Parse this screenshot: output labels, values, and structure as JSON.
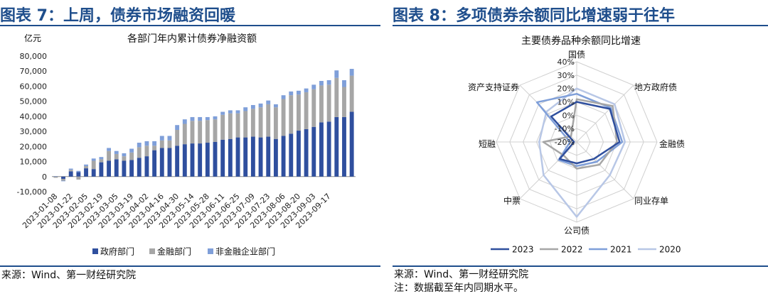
{
  "panels": {
    "left": {
      "figure_title": "图表 7：上周，债券市场融资回暖",
      "source": "来源：Wind、第一财经研究院"
    },
    "right": {
      "figure_title": "图表 8：多项债券余额同比增速弱于往年",
      "source": "来源：Wind、第一财经研究院",
      "note": "注：数据截至年内同期水平。"
    }
  },
  "colors": {
    "brand": "#1f4e8c",
    "gov": "#2f4f9e",
    "fin": "#a6a6a6",
    "nonfin": "#7f9fd9",
    "r2023": "#2f4f9e",
    "r2022": "#a6a6a6",
    "r2021": "#7f9fd9",
    "r2020": "#b8c7e6"
  },
  "chart_data": [
    {
      "type": "bar",
      "stacked": true,
      "title": "各部门年内累计债券净融资额",
      "unit_label": "亿元",
      "ylim": [
        -10000,
        80000
      ],
      "yticks": [
        -10000,
        0,
        10000,
        20000,
        30000,
        40000,
        50000,
        60000,
        70000,
        80000
      ],
      "ytick_labels": [
        "-10,000",
        "0",
        "10,000",
        "20,000",
        "30,000",
        "40,000",
        "50,000",
        "60,000",
        "70,000",
        "80,000"
      ],
      "xtick_labels": [
        "2023-01-08",
        "2023-01-22",
        "2023-02-05",
        "2023-02-19",
        "2023-03-05",
        "2023-03-19",
        "2023-04-02",
        "2023-04-16",
        "2023-04-30",
        "2023-05-14",
        "2023-05-28",
        "2023-06-11",
        "2023-06-25",
        "2023-07-09",
        "2023-07-23",
        "2023-08-06",
        "2023-08-20",
        "2023-09-03",
        "2023-09-17"
      ],
      "legend_position": "bottom",
      "series": [
        {
          "name": "政府部门",
          "values": [
            200,
            -1500,
            3500,
            3000,
            5500,
            5000,
            9500,
            10500,
            11500,
            10500,
            11000,
            12500,
            13500,
            17500,
            19000,
            19000,
            20500,
            21500,
            22000,
            22000,
            22500,
            23000,
            24500,
            25000,
            26000,
            26000,
            26500,
            26000,
            26500,
            25000,
            27000,
            28500,
            30500,
            31500,
            33000,
            36000,
            36500,
            39500,
            39500,
            43000
          ]
        },
        {
          "name": "金融部门",
          "values": [
            -800,
            -1200,
            1000,
            -2000,
            1500,
            5500,
            2000,
            6500,
            3500,
            3000,
            5000,
            7000,
            7000,
            3000,
            5000,
            5000,
            10500,
            13500,
            15000,
            15000,
            15000,
            15000,
            16500,
            17000,
            16000,
            17500,
            18500,
            20000,
            21500,
            21000,
            24500,
            25500,
            24000,
            24500,
            25000,
            24500,
            24500,
            26000,
            20000,
            24000
          ]
        },
        {
          "name": "非金融企业部门",
          "values": [
            0,
            -400,
            800,
            800,
            1000,
            1500,
            1500,
            2000,
            2000,
            2000,
            2500,
            3000,
            3000,
            3000,
            3000,
            3000,
            3200,
            3000,
            2500,
            2500,
            2000,
            2000,
            2000,
            2000,
            2000,
            2500,
            2500,
            2500,
            2500,
            2000,
            2500,
            2500,
            2500,
            2500,
            3000,
            3000,
            3000,
            5000,
            4500,
            4500
          ]
        }
      ]
    },
    {
      "type": "radar",
      "title": "主要债券品种余额同比增速",
      "categories": [
        "国债",
        "地方政府债",
        "金融债",
        "同业存单",
        "公司债",
        "中票",
        "短融",
        "资产支持证券"
      ],
      "r_ticks": [
        "-20%",
        "-10%",
        "0%",
        "10%",
        "20%",
        "30%",
        "40%"
      ],
      "r_tick_values": [
        -20,
        -10,
        0,
        10,
        20,
        30,
        40
      ],
      "rlim": [
        -20,
        40
      ],
      "legend_position": "bottom",
      "series": [
        {
          "name": "2023",
          "values": [
            10,
            15,
            12,
            -2,
            -4,
            -2,
            -18,
            7
          ]
        },
        {
          "name": "2022",
          "values": [
            12,
            18,
            10,
            4,
            0,
            -6,
            5,
            -14
          ]
        },
        {
          "name": "2021",
          "values": [
            16,
            16,
            14,
            1,
            -2,
            -1,
            -15,
            22
          ]
        },
        {
          "name": "2020",
          "values": [
            20,
            20,
            16,
            15,
            36,
            15,
            8,
            12
          ]
        }
      ]
    }
  ]
}
